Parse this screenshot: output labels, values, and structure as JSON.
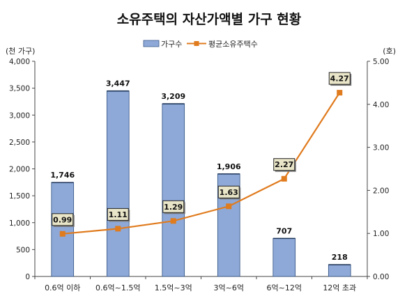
{
  "chart_data": {
    "type": "bar",
    "title": "소유주택의 자산가액별 가구 현황",
    "categories": [
      "0.6억 이하",
      "0.6억~1.5억",
      "1.5억~3억",
      "3억~6억",
      "6억~12억",
      "12억 초과"
    ],
    "series": [
      {
        "name": "가구수",
        "type": "bar",
        "axis": "left",
        "values": [
          1746,
          3447,
          3209,
          1906,
          707,
          218
        ],
        "labels": [
          "1,746",
          "3,447",
          "3,209",
          "1,906",
          "707",
          "218"
        ],
        "color": "#8EA9D8"
      },
      {
        "name": "평균소유주택수",
        "type": "line",
        "axis": "right",
        "values": [
          0.99,
          1.11,
          1.29,
          1.63,
          2.27,
          4.27
        ],
        "labels": [
          "0.99",
          "1.11",
          "1.29",
          "1.63",
          "2.27",
          "4.27"
        ],
        "color": "#E07B1E"
      }
    ],
    "y_left": {
      "unit_label": "(천 가구)",
      "ylim": [
        0,
        4000
      ],
      "ticks": [
        "0",
        "500",
        "1,000",
        "1,500",
        "2,000",
        "2,500",
        "3,000",
        "3,500",
        "4,000"
      ]
    },
    "y_right": {
      "unit_label": "(호)",
      "ylim": [
        0,
        5
      ],
      "ticks": [
        "0.00",
        "1.00",
        "2.00",
        "3.00",
        "4.00",
        "5.00"
      ]
    },
    "legend_position": "top-center",
    "grid": false
  }
}
